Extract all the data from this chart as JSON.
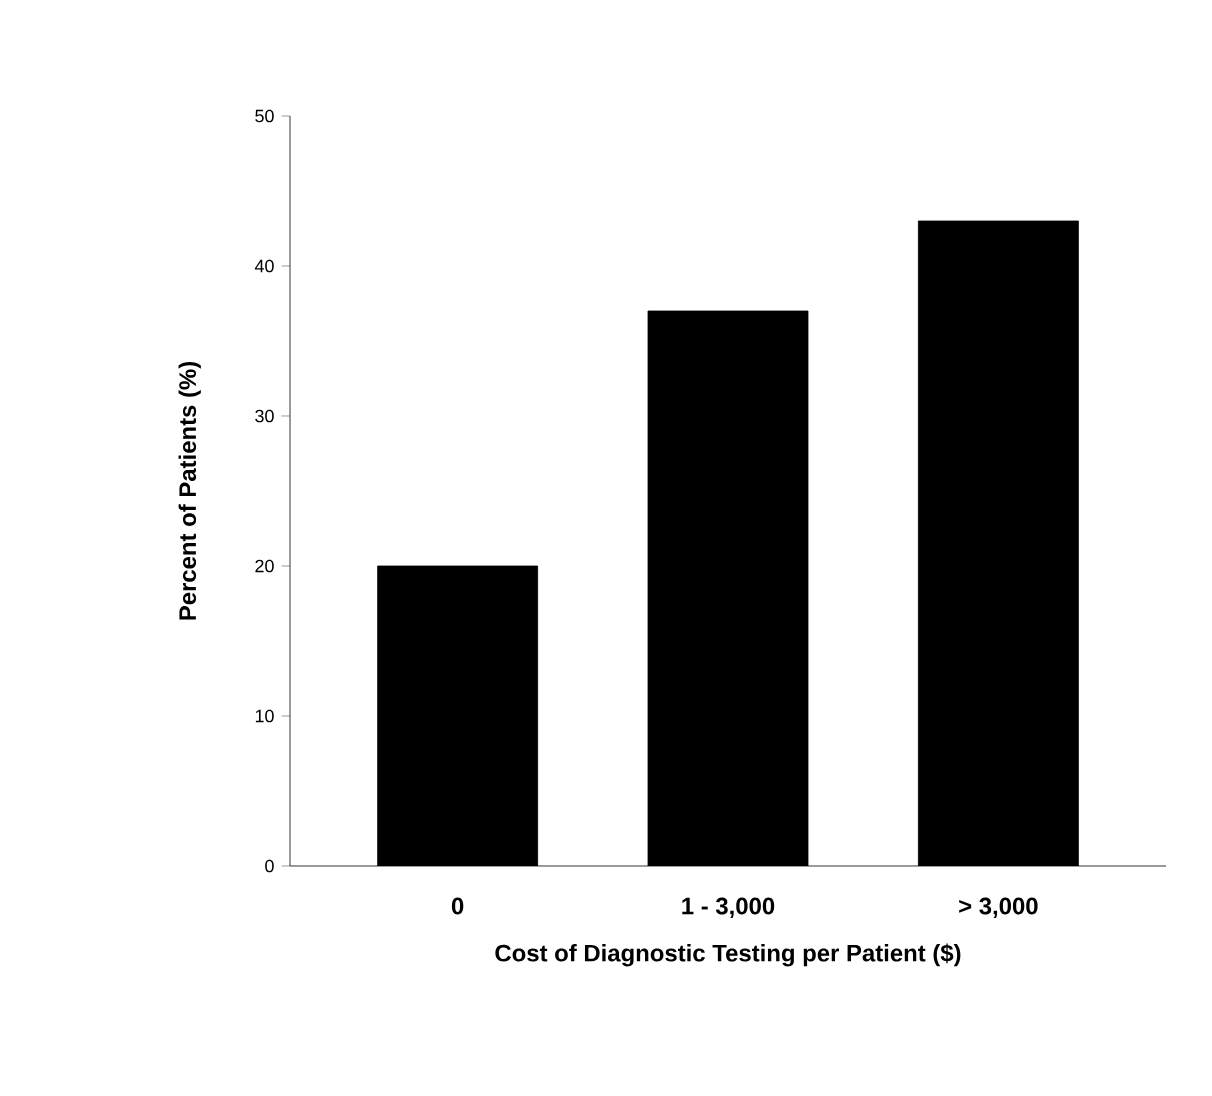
{
  "chart_data": {
    "type": "bar",
    "xlabel": "Cost of Diagnostic Testing per Patient ($)",
    "ylabel": "Percent of Patients (%)",
    "categories": [
      "0",
      "1 - 3,000",
      "> 3,000"
    ],
    "values": [
      20,
      37,
      43
    ],
    "color": "#000000",
    "ylim": [
      0,
      50
    ],
    "yticks": [
      0,
      10,
      20,
      30,
      40,
      50
    ]
  }
}
